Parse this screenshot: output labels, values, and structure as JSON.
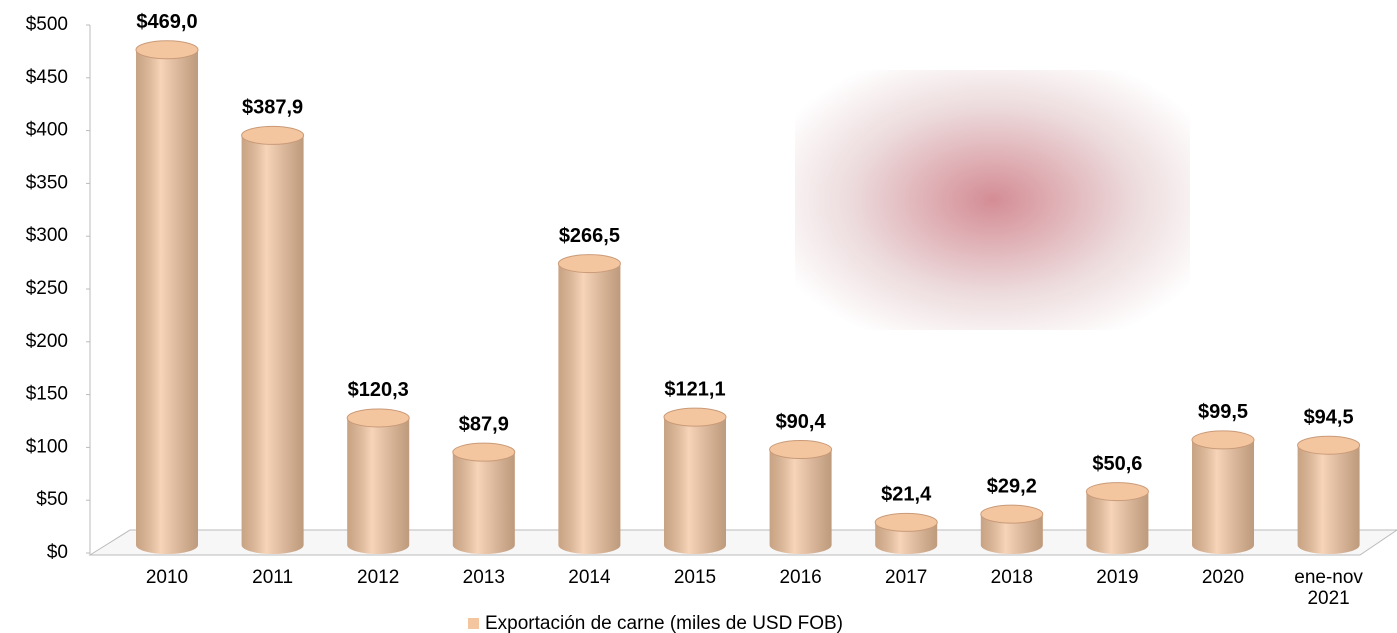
{
  "chart_data": {
    "type": "bar",
    "categories": [
      "2010",
      "2011",
      "2012",
      "2013",
      "2014",
      "2015",
      "2016",
      "2017",
      "2018",
      "2019",
      "2020",
      "ene-nov 2021"
    ],
    "series": [
      {
        "name": "Exportación de carne (miles de USD FOB)",
        "color": "#f4c6a0",
        "values": [
          469.0,
          387.9,
          120.3,
          87.9,
          266.5,
          121.1,
          90.4,
          21.4,
          29.2,
          50.6,
          99.5,
          94.5
        ],
        "value_labels": [
          "$469,0",
          "$387,9",
          "$120,3",
          "$87,9",
          "$266,5",
          "$121,1",
          "$90,4",
          "$21,4",
          "$29,2",
          "$50,6",
          "$99,5",
          "$94,5"
        ]
      }
    ],
    "ylim": [
      0,
      500
    ],
    "yticks": [
      {
        "value": 0,
        "label": "$0"
      },
      {
        "value": 50,
        "label": "$50"
      },
      {
        "value": 100,
        "label": "$100"
      },
      {
        "value": 150,
        "label": "$150"
      },
      {
        "value": 200,
        "label": "$200"
      },
      {
        "value": 250,
        "label": "$250"
      },
      {
        "value": 300,
        "label": "$300"
      },
      {
        "value": 350,
        "label": "$350"
      },
      {
        "value": 400,
        "label": "$400"
      },
      {
        "value": 450,
        "label": "$450"
      },
      {
        "value": 500,
        "label": "$500"
      }
    ],
    "legend": "bottom"
  }
}
